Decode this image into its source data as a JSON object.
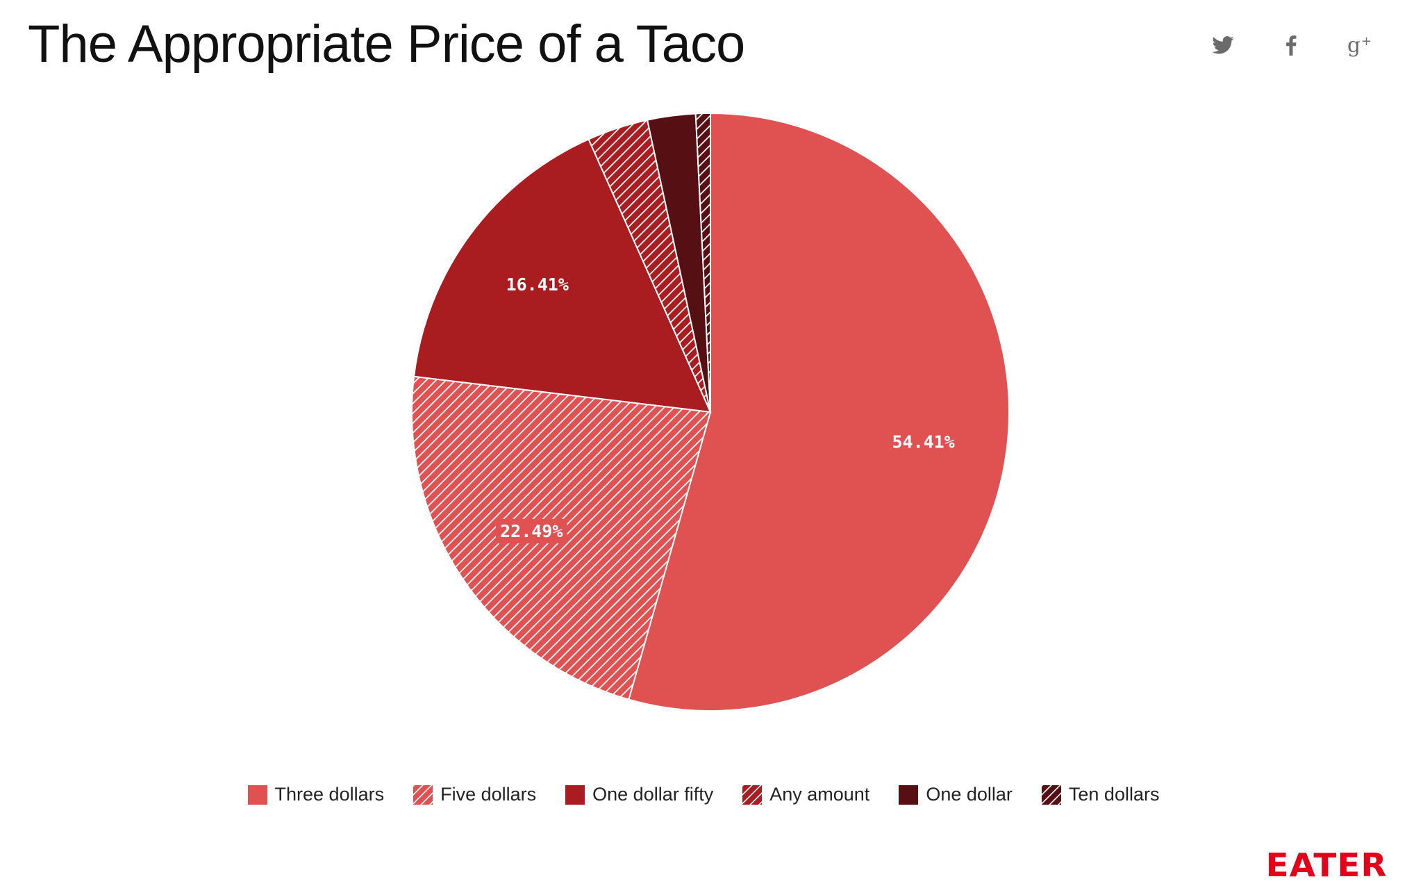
{
  "chart_data": {
    "type": "pie",
    "title": "The Appropriate Price of a Taco",
    "slices": [
      {
        "label": "Three dollars",
        "value": 54.41,
        "data_label": "54.41%",
        "color": "#e05252",
        "pattern": "solid"
      },
      {
        "label": "Five dollars",
        "value": 22.49,
        "data_label": "22.49%",
        "color": "#e05252",
        "pattern": "hatch"
      },
      {
        "label": "One dollar fifty",
        "value": 16.41,
        "data_label": "16.41%",
        "color": "#a91c1f",
        "pattern": "solid"
      },
      {
        "label": "Any amount",
        "value": 3.3,
        "data_label": "",
        "color": "#a91c1f",
        "pattern": "hatch"
      },
      {
        "label": "One dollar",
        "value": 2.6,
        "data_label": "",
        "color": "#560f12",
        "pattern": "solid"
      },
      {
        "label": "Ten dollars",
        "value": 0.79,
        "data_label": "",
        "color": "#560f12",
        "pattern": "hatch"
      }
    ],
    "start_angle_deg": 0,
    "direction": "clockwise",
    "legend_position": "bottom-center"
  },
  "share": {
    "icons": [
      {
        "name": "twitter-icon",
        "color": "#6b6b6b"
      },
      {
        "name": "facebook-icon",
        "color": "#6b6b6b"
      },
      {
        "name": "google-plus-icon",
        "color": "#6b6b6b"
      }
    ]
  },
  "brand": {
    "logo_text": "EATER",
    "color": "#e3001b"
  }
}
